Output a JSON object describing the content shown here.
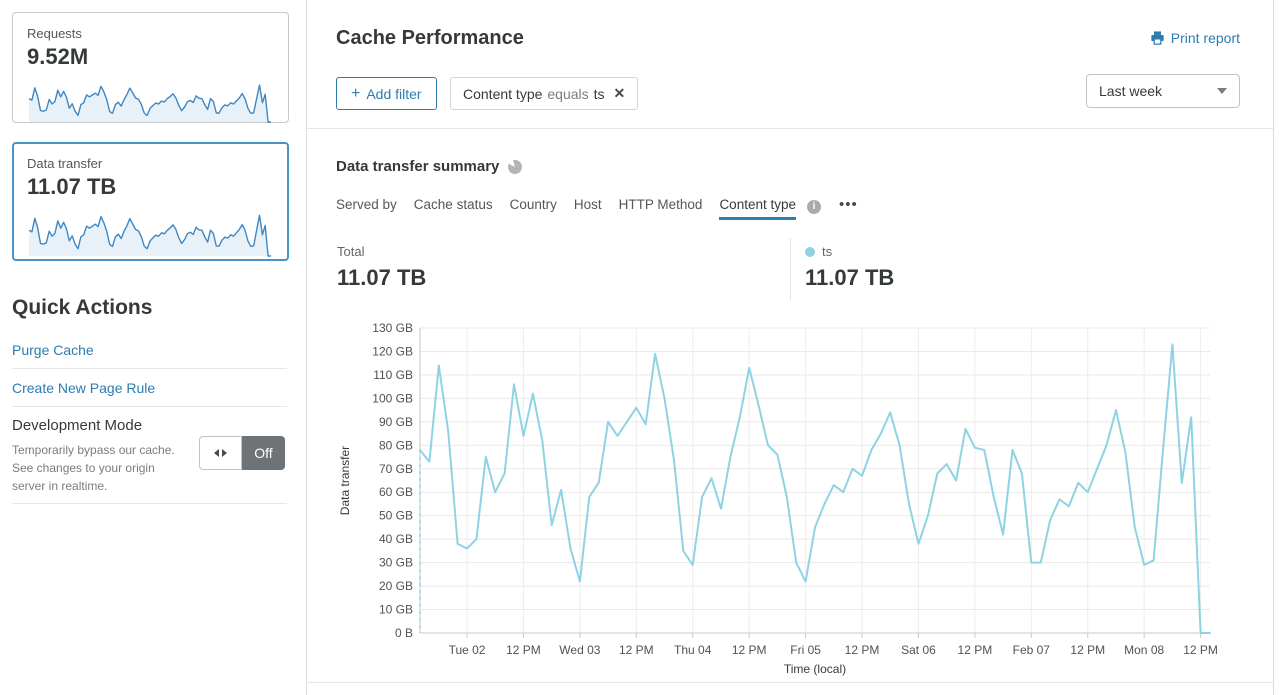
{
  "sidebar": {
    "requests_card": {
      "label": "Requests",
      "value": "9.52M"
    },
    "data_transfer_card": {
      "label": "Data transfer",
      "value": "11.07 TB"
    },
    "sparkline_color": "#3e87c4",
    "sparkline_fill": "#e9f1f8",
    "quick_actions": {
      "title": "Quick Actions",
      "links": [
        "Purge Cache",
        "Create New Page Rule"
      ],
      "development_mode": {
        "label": "Development Mode",
        "description": "Temporarily bypass our cache. See changes to your origin server in realtime.",
        "toggle_state": "Off"
      }
    }
  },
  "header": {
    "title": "Cache Performance",
    "print_report": "Print report",
    "add_filter_plus": "+",
    "add_filter_label": "Add filter",
    "filter_chip": {
      "field": "Content type",
      "operator": "equals",
      "value": "ts",
      "close": "✕"
    },
    "time_range": "Last week"
  },
  "summary": {
    "title": "Data transfer summary",
    "tabs": [
      "Served by",
      "Cache status",
      "Country",
      "Host",
      "HTTP Method",
      "Content type"
    ],
    "active_tab": "Content type",
    "info_icon_text": "i",
    "more_tabs": "•••",
    "total_label": "Total",
    "total_value": "11.07 TB",
    "legend": {
      "name": "ts",
      "value": "11.07 TB",
      "color": "#8fd3e3"
    }
  },
  "chart_data": {
    "type": "line",
    "title": "Data transfer summary",
    "xlabel": "Time (local)",
    "ylabel": "Data transfer",
    "unit": "GB",
    "ylim": [
      0,
      130
    ],
    "grid": true,
    "start_dashed": true,
    "y_ticks": [
      "0 B",
      "10 GB",
      "20 GB",
      "30 GB",
      "40 GB",
      "50 GB",
      "60 GB",
      "70 GB",
      "80 GB",
      "90 GB",
      "100 GB",
      "110 GB",
      "120 GB",
      "130 GB"
    ],
    "x_ticks": [
      {
        "label": "Tue 02",
        "i": 5
      },
      {
        "label": "12 PM",
        "i": 11
      },
      {
        "label": "Wed 03",
        "i": 17
      },
      {
        "label": "12 PM",
        "i": 23
      },
      {
        "label": "Thu 04",
        "i": 29
      },
      {
        "label": "12 PM",
        "i": 35
      },
      {
        "label": "Fri 05",
        "i": 41
      },
      {
        "label": "12 PM",
        "i": 47
      },
      {
        "label": "Sat 06",
        "i": 53
      },
      {
        "label": "12 PM",
        "i": 59
      },
      {
        "label": "Feb 07",
        "i": 65
      },
      {
        "label": "12 PM",
        "i": 71
      },
      {
        "label": "Mon 08",
        "i": 77
      },
      {
        "label": "12 PM",
        "i": 83
      }
    ],
    "series": [
      {
        "name": "ts",
        "color": "#8ed3e4",
        "values": [
          78,
          73,
          114,
          86,
          38,
          36,
          40,
          75,
          60,
          68,
          106,
          84,
          102,
          82,
          46,
          61,
          36,
          22,
          58,
          64,
          90,
          84,
          90,
          96,
          89,
          119,
          100,
          74,
          35,
          29,
          58,
          66,
          53,
          75,
          92,
          113,
          97,
          80,
          76,
          58,
          30,
          22,
          45,
          55,
          63,
          60,
          70,
          67,
          78,
          85,
          94,
          80,
          55,
          38,
          50,
          68,
          72,
          65,
          87,
          79,
          78,
          58,
          42,
          78,
          68,
          30,
          30,
          48,
          57,
          54,
          64,
          60,
          70,
          80,
          95,
          77,
          45,
          29,
          31,
          78,
          123,
          64,
          92,
          0,
          0
        ]
      }
    ]
  }
}
